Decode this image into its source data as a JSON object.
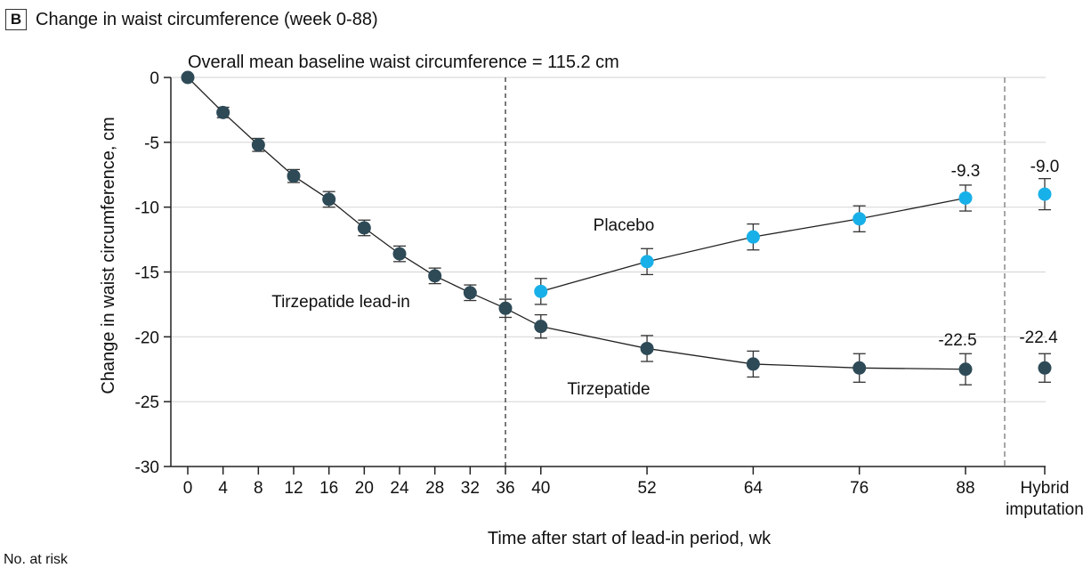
{
  "panel": {
    "letter": "B",
    "title": "Change in waist circumference (week 0-88)"
  },
  "footnote": "No. at risk",
  "colors": {
    "tirzepatide": "#2e4a57",
    "placebo": "#18b0e8",
    "grid": "#d9d9d9",
    "line": "#222222"
  },
  "chart_data": {
    "type": "line",
    "title": "Change in waist circumference (week 0-88)",
    "annotation": "Overall mean baseline waist circumference = 115.2 cm",
    "xlabel": "Time after start of lead-in period, wk",
    "ylabel": "Change in waist circumference, cm",
    "ylim": [
      -30,
      0
    ],
    "yticks": [
      0,
      -5,
      -10,
      -15,
      -20,
      -25,
      -30
    ],
    "xticks": [
      "0",
      "4",
      "8",
      "12",
      "16",
      "20",
      "24",
      "28",
      "32",
      "36",
      "40",
      "52",
      "64",
      "76",
      "88",
      "Hybrid imputation"
    ],
    "grid": "horizontal",
    "vertical_dashed_lines": [
      "36",
      "between 88 and Hybrid imputation"
    ],
    "series": [
      {
        "name": "Tirzepatide lead-in",
        "x": [
          0,
          4,
          8,
          12,
          16,
          20,
          24,
          28,
          32,
          36
        ],
        "y": [
          0,
          -2.7,
          -5.2,
          -7.6,
          -9.4,
          -11.6,
          -13.6,
          -15.3,
          -16.6,
          -17.8
        ],
        "err": [
          0,
          0.4,
          0.5,
          0.5,
          0.6,
          0.6,
          0.6,
          0.6,
          0.6,
          0.7
        ]
      },
      {
        "name": "Tirzepatide",
        "x": [
          36,
          40,
          52,
          64,
          76,
          88
        ],
        "y": [
          -17.8,
          -19.2,
          -20.9,
          -22.1,
          -22.4,
          -22.5
        ],
        "err": [
          0.7,
          0.9,
          1.0,
          1.0,
          1.1,
          1.2
        ],
        "value_label": "-22.5",
        "hybrid_imputation": {
          "y": -22.4,
          "err": 1.1,
          "label": "-22.4"
        }
      },
      {
        "name": "Placebo",
        "x": [
          40,
          52,
          64,
          76,
          88
        ],
        "y": [
          -16.5,
          -14.2,
          -12.3,
          -10.9,
          -9.3
        ],
        "err": [
          1.0,
          1.0,
          1.0,
          1.0,
          1.0
        ],
        "value_label": "-9.3",
        "hybrid_imputation": {
          "y": -9.0,
          "err": 1.2,
          "label": "-9.0"
        }
      }
    ]
  }
}
